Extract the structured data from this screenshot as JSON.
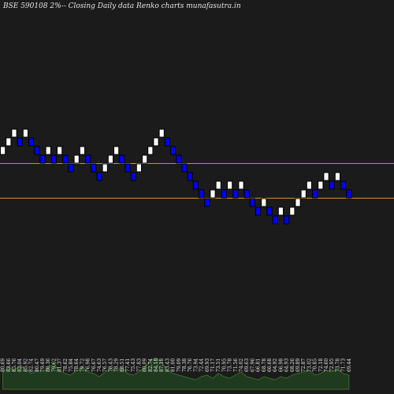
{
  "chart_data": {
    "type": "renko",
    "title": "BSE 590108  2%-- Closing Daily data Renko  charts munafasutra.in",
    "reference_lines": [
      78.76,
      70.76
    ],
    "bricks": [
      {
        "low": 80.76,
        "high": 82.76,
        "dir": "up"
      },
      {
        "low": 82.76,
        "high": 84.76,
        "dir": "up"
      },
      {
        "low": 84.76,
        "high": 86.76,
        "dir": "up"
      },
      {
        "low": 82.76,
        "high": 84.76,
        "dir": "down"
      },
      {
        "low": 84.76,
        "high": 86.76,
        "dir": "up"
      },
      {
        "low": 82.76,
        "high": 84.76,
        "dir": "down"
      },
      {
        "low": 80.76,
        "high": 82.76,
        "dir": "down"
      },
      {
        "low": 78.76,
        "high": 80.76,
        "dir": "down"
      },
      {
        "low": 80.76,
        "high": 82.76,
        "dir": "up"
      },
      {
        "low": 78.76,
        "high": 80.76,
        "dir": "down"
      },
      {
        "low": 80.76,
        "high": 82.76,
        "dir": "up"
      },
      {
        "low": 78.76,
        "high": 80.76,
        "dir": "down"
      },
      {
        "low": 76.76,
        "high": 78.76,
        "dir": "down"
      },
      {
        "low": 78.76,
        "high": 80.76,
        "dir": "up"
      },
      {
        "low": 80.76,
        "high": 82.76,
        "dir": "up"
      },
      {
        "low": 78.76,
        "high": 80.76,
        "dir": "down"
      },
      {
        "low": 76.76,
        "high": 78.76,
        "dir": "down"
      },
      {
        "low": 74.76,
        "high": 76.76,
        "dir": "down"
      },
      {
        "low": 76.76,
        "high": 78.76,
        "dir": "up"
      },
      {
        "low": 78.76,
        "high": 80.76,
        "dir": "up"
      },
      {
        "low": 80.76,
        "high": 82.76,
        "dir": "up"
      },
      {
        "low": 78.76,
        "high": 80.76,
        "dir": "down"
      },
      {
        "low": 76.76,
        "high": 78.76,
        "dir": "down"
      },
      {
        "low": 74.76,
        "high": 76.76,
        "dir": "down"
      },
      {
        "low": 76.76,
        "high": 78.76,
        "dir": "up"
      },
      {
        "low": 78.76,
        "high": 80.76,
        "dir": "up"
      },
      {
        "low": 80.76,
        "high": 82.76,
        "dir": "up"
      },
      {
        "low": 82.76,
        "high": 84.76,
        "dir": "up"
      },
      {
        "low": 84.76,
        "high": 86.76,
        "dir": "up"
      },
      {
        "low": 82.76,
        "high": 84.76,
        "dir": "down"
      },
      {
        "low": 80.76,
        "high": 82.76,
        "dir": "down"
      },
      {
        "low": 78.76,
        "high": 80.76,
        "dir": "down"
      },
      {
        "low": 76.76,
        "high": 78.76,
        "dir": "down"
      },
      {
        "low": 74.76,
        "high": 76.76,
        "dir": "down"
      },
      {
        "low": 72.76,
        "high": 74.76,
        "dir": "down"
      },
      {
        "low": 70.76,
        "high": 72.76,
        "dir": "down"
      },
      {
        "low": 68.76,
        "high": 70.76,
        "dir": "down"
      },
      {
        "low": 70.76,
        "high": 72.76,
        "dir": "up"
      },
      {
        "low": 72.76,
        "high": 74.76,
        "dir": "up"
      },
      {
        "low": 70.76,
        "high": 72.76,
        "dir": "down"
      },
      {
        "low": 72.76,
        "high": 74.76,
        "dir": "up"
      },
      {
        "low": 70.76,
        "high": 72.76,
        "dir": "down"
      },
      {
        "low": 72.76,
        "high": 74.76,
        "dir": "up"
      },
      {
        "low": 70.76,
        "high": 72.76,
        "dir": "down"
      },
      {
        "low": 68.76,
        "high": 70.76,
        "dir": "down"
      },
      {
        "low": 66.76,
        "high": 68.76,
        "dir": "down"
      },
      {
        "low": 68.76,
        "high": 70.76,
        "dir": "up"
      },
      {
        "low": 66.76,
        "high": 68.76,
        "dir": "down"
      },
      {
        "low": 64.76,
        "high": 66.76,
        "dir": "down"
      },
      {
        "low": 66.76,
        "high": 68.76,
        "dir": "up"
      },
      {
        "low": 64.76,
        "high": 66.76,
        "dir": "down"
      },
      {
        "low": 66.76,
        "high": 68.76,
        "dir": "up"
      },
      {
        "low": 68.76,
        "high": 70.76,
        "dir": "up"
      },
      {
        "low": 70.76,
        "high": 72.76,
        "dir": "up"
      },
      {
        "low": 72.76,
        "high": 74.76,
        "dir": "up"
      },
      {
        "low": 70.76,
        "high": 72.76,
        "dir": "down"
      },
      {
        "low": 72.76,
        "high": 74.76,
        "dir": "up"
      },
      {
        "low": 74.76,
        "high": 76.76,
        "dir": "up"
      },
      {
        "low": 72.76,
        "high": 74.76,
        "dir": "down"
      },
      {
        "low": 74.76,
        "high": 76.76,
        "dir": "up"
      },
      {
        "low": 72.76,
        "high": 74.76,
        "dir": "down"
      },
      {
        "low": 70.76,
        "high": 72.76,
        "dir": "down"
      }
    ],
    "value_labels": [
      "80.69",
      "83.66",
      "85.76",
      "82.04",
      "85.92",
      "82.74",
      "80.47",
      "79.49",
      "80.36",
      "79.62",
      "81.37",
      "78.62",
      "75.84",
      "78.64",
      "79.72",
      "76.98",
      "76.67",
      "74.63",
      "76.57",
      "78.43",
      "78.29",
      "80.51",
      "77.41",
      "75.43",
      "77.83",
      "80.09",
      "82.74",
      "84.18",
      "87.18",
      "83.43",
      "81.00",
      "79.09",
      "78.38",
      "76.76",
      "73.94",
      "72.44",
      "69.93",
      "71.17",
      "73.51",
      "70.95",
      "73.78",
      "71.56",
      "74.02",
      "69.63",
      "67.96",
      "66.81",
      "68.78",
      "66.68",
      "64.92",
      "66.98",
      "64.93",
      "68.26",
      "69.89",
      "72.87",
      "73.02",
      "70.85",
      "72.18",
      "74.60",
      "72.95",
      "73.78",
      "71.73",
      "69.44"
    ],
    "volume": [
      0.55,
      0.7,
      0.6,
      0.75,
      0.65,
      0.5,
      0.6,
      0.55,
      0.7,
      0.8,
      0.6,
      0.5,
      0.45,
      0.6,
      0.7,
      0.55,
      0.5,
      0.4,
      0.55,
      0.65,
      0.6,
      0.7,
      0.5,
      0.45,
      0.55,
      0.7,
      0.9,
      1.0,
      0.85,
      0.6,
      0.5,
      0.45,
      0.4,
      0.35,
      0.3,
      0.4,
      0.45,
      0.35,
      0.5,
      0.4,
      0.35,
      0.45,
      0.55,
      0.4,
      0.35,
      0.3,
      0.4,
      0.35,
      0.3,
      0.4,
      0.35,
      0.45,
      0.5,
      0.55,
      0.6,
      0.45,
      0.5,
      0.6,
      0.55,
      0.65,
      0.5,
      0.45
    ],
    "colors": {
      "up": "#ffffff",
      "down": "#0000ff",
      "line": "#d98b1f",
      "volume": "#1f3a1f",
      "volume_edge": "#3a6b2a",
      "label": "#e6e6e6"
    }
  }
}
